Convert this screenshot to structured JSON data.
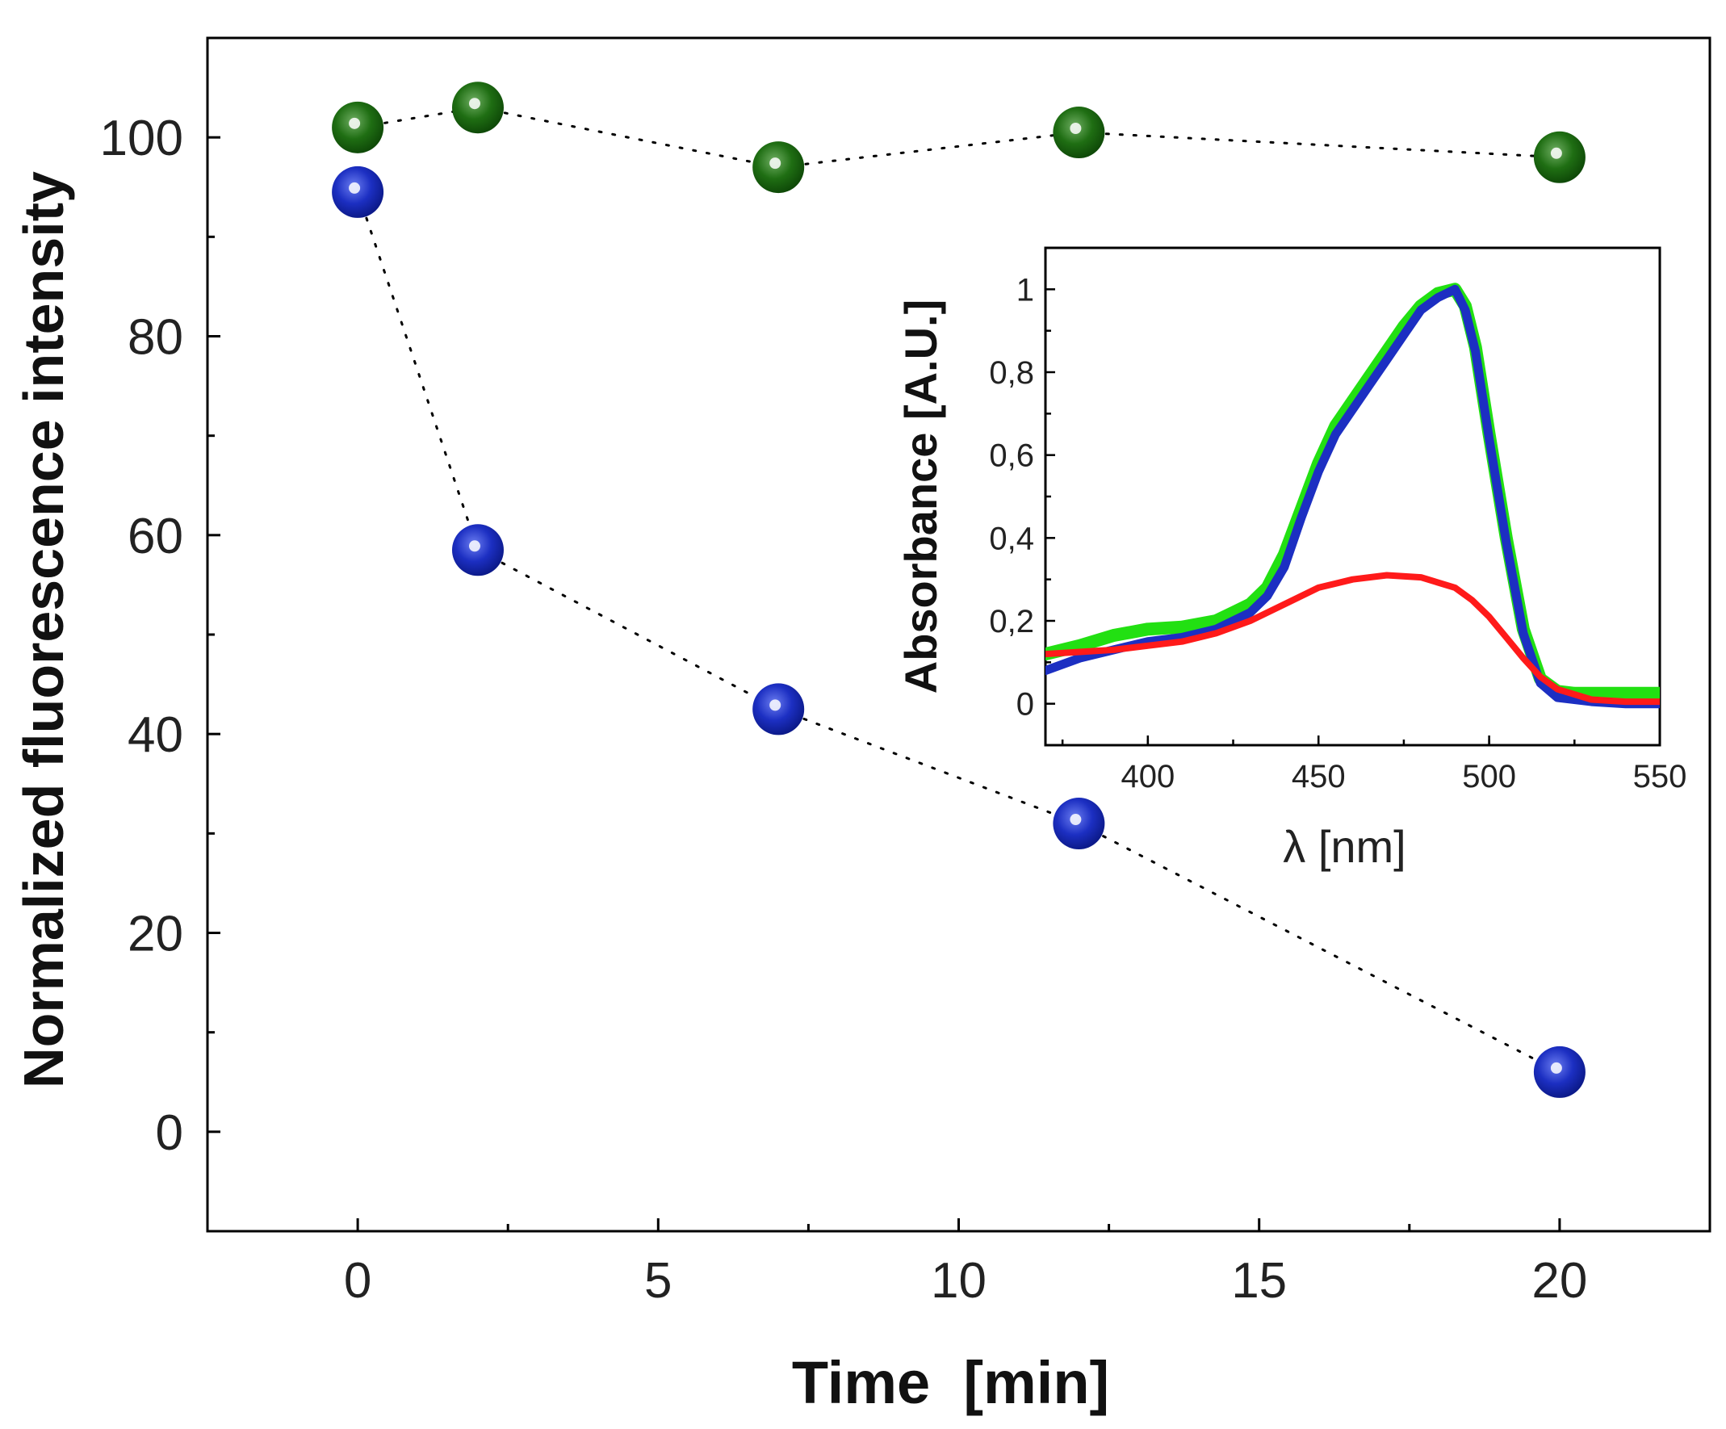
{
  "chart_data": [
    {
      "id": "main",
      "type": "scatter",
      "title": "",
      "xlabel": "Time  [min]",
      "ylabel": "Normalized fluorescence intensity",
      "xlim": [
        -2.5,
        22.5
      ],
      "ylim": [
        -10,
        110
      ],
      "x_ticks": [
        0,
        5,
        10,
        15,
        20
      ],
      "x_tick_labels": [
        "0",
        "5",
        "10",
        "15",
        "20"
      ],
      "y_ticks": [
        0,
        20,
        40,
        60,
        80,
        100
      ],
      "y_tick_labels": [
        "0",
        "20",
        "40",
        "60",
        "80",
        "100"
      ],
      "grid": false,
      "series": [
        {
          "name": "green",
          "color": "#1e6b12",
          "line": "dotted",
          "x": [
            0,
            2,
            7,
            12,
            20
          ],
          "y": [
            101,
            103,
            97,
            100.5,
            98
          ]
        },
        {
          "name": "blue",
          "color": "#1c2fc2",
          "line": "dotted",
          "x": [
            0,
            2,
            7,
            12,
            20
          ],
          "y": [
            94.5,
            58.5,
            42.5,
            31,
            6
          ]
        }
      ]
    },
    {
      "id": "inset",
      "type": "line",
      "title": "",
      "xlabel": "λ [nm]",
      "ylabel": "Absorbance [A.U.]",
      "xlim": [
        370,
        550
      ],
      "ylim": [
        -0.1,
        1.1
      ],
      "x_ticks": [
        400,
        450,
        500,
        550
      ],
      "x_tick_labels": [
        "400",
        "450",
        "500",
        "550"
      ],
      "y_ticks": [
        0,
        0.2,
        0.4,
        0.6,
        0.8,
        1
      ],
      "y_tick_labels": [
        "0",
        "0,2",
        "0,4",
        "0,6",
        "0,8",
        "1"
      ],
      "grid": false,
      "series": [
        {
          "name": "green",
          "color": "#22e012",
          "x": [
            370,
            380,
            390,
            400,
            410,
            420,
            430,
            435,
            440,
            445,
            450,
            455,
            460,
            465,
            470,
            475,
            480,
            485,
            490,
            493,
            496,
            500,
            505,
            510,
            515,
            520,
            525,
            530,
            540,
            550
          ],
          "y": [
            0.12,
            0.14,
            0.165,
            0.18,
            0.185,
            0.2,
            0.24,
            0.28,
            0.36,
            0.47,
            0.58,
            0.67,
            0.73,
            0.79,
            0.85,
            0.91,
            0.96,
            0.99,
            1.0,
            0.96,
            0.86,
            0.65,
            0.4,
            0.18,
            0.06,
            0.03,
            0.025,
            0.025,
            0.025,
            0.025
          ]
        },
        {
          "name": "blue",
          "color": "#1c2fc2",
          "x": [
            370,
            380,
            390,
            400,
            410,
            420,
            430,
            435,
            440,
            445,
            450,
            455,
            460,
            465,
            470,
            475,
            480,
            485,
            490,
            493,
            496,
            500,
            505,
            510,
            515,
            520,
            525,
            530,
            540,
            550
          ],
          "y": [
            0.08,
            0.11,
            0.13,
            0.15,
            0.16,
            0.18,
            0.22,
            0.26,
            0.33,
            0.45,
            0.56,
            0.65,
            0.71,
            0.77,
            0.83,
            0.89,
            0.95,
            0.98,
            1.0,
            0.95,
            0.85,
            0.64,
            0.39,
            0.17,
            0.05,
            0.015,
            0.01,
            0.005,
            0.0,
            0.0
          ]
        },
        {
          "name": "red",
          "color": "#ff1a1a",
          "x": [
            370,
            380,
            390,
            400,
            410,
            420,
            430,
            440,
            450,
            460,
            470,
            480,
            490,
            495,
            500,
            505,
            510,
            515,
            520,
            530,
            540,
            550
          ],
          "y": [
            0.12,
            0.125,
            0.13,
            0.14,
            0.15,
            0.17,
            0.2,
            0.24,
            0.28,
            0.3,
            0.31,
            0.305,
            0.28,
            0.25,
            0.21,
            0.16,
            0.11,
            0.065,
            0.035,
            0.01,
            0.005,
            0.005
          ]
        }
      ]
    }
  ]
}
